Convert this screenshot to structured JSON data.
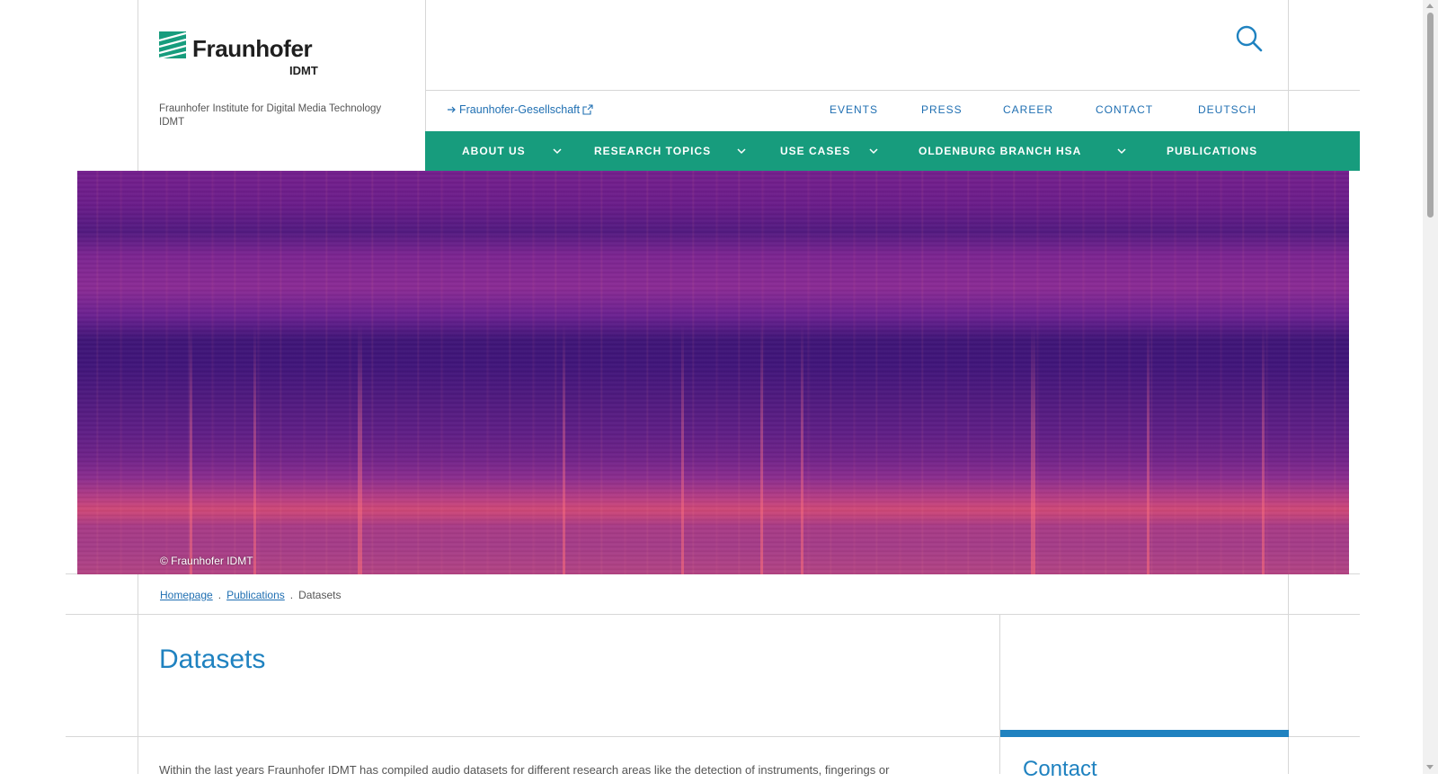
{
  "brand": {
    "name": "Fraunhofer",
    "unit": "IDMT",
    "institute": "Fraunhofer Institute for Digital Media Technology IDMT",
    "color": "#179c7d"
  },
  "search": {
    "icon": "search-icon"
  },
  "secondary_nav": {
    "external_link": "Fraunhofer-Gesellschaft",
    "items": [
      "EVENTS",
      "PRESS",
      "CAREER",
      "CONTACT",
      "DEUTSCH"
    ]
  },
  "main_nav": {
    "items": [
      {
        "label": "ABOUT US",
        "has_dropdown": true
      },
      {
        "label": "RESEARCH TOPICS",
        "has_dropdown": true
      },
      {
        "label": "USE CASES",
        "has_dropdown": true
      },
      {
        "label": "OLDENBURG BRANCH HSA",
        "has_dropdown": true
      },
      {
        "label": "PUBLICATIONS",
        "has_dropdown": false
      }
    ]
  },
  "hero": {
    "copyright": "© Fraunhofer IDMT"
  },
  "breadcrumb": {
    "items": [
      "Homepage",
      "Publications",
      "Datasets"
    ],
    "separator": "."
  },
  "page": {
    "title": "Datasets",
    "intro": "Within the last years Fraunhofer IDMT has compiled audio datasets for different research areas like the detection of instruments, fingerings or"
  },
  "sidebar": {
    "contact_heading": "Contact"
  },
  "colors": {
    "link": "#1f6fb2",
    "heading": "#1f82c0",
    "nav_bg": "#179c7d"
  }
}
